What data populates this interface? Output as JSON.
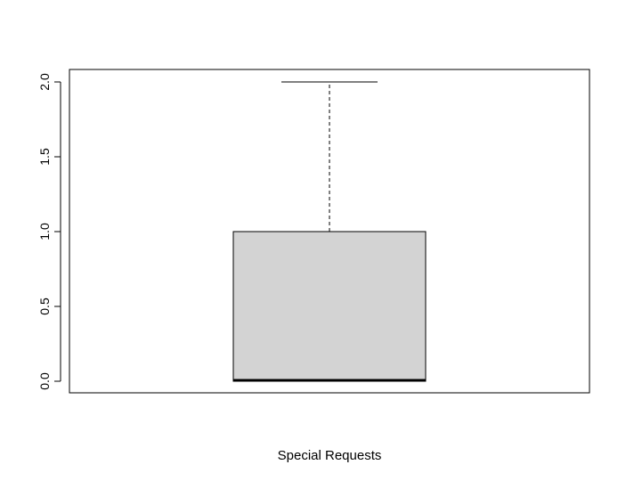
{
  "chart_data": {
    "type": "boxplot",
    "xlabel": "Special Requests",
    "ylabel": "",
    "title": "",
    "ylim": [
      0,
      2
    ],
    "y_ticks": [
      0,
      0.5,
      1,
      1.5,
      2
    ],
    "y_tick_labels": [
      "0.0",
      "0.5",
      "1.0",
      "1.5",
      "2.0"
    ],
    "boxes": [
      {
        "name": "",
        "min": 0,
        "q1": 0,
        "median": 0,
        "q3": 1,
        "max": 2
      }
    ],
    "colors": {
      "box_fill": "#d3d3d3",
      "stroke": "#000000",
      "background": "#ffffff"
    },
    "grid": false,
    "legend": "none"
  }
}
